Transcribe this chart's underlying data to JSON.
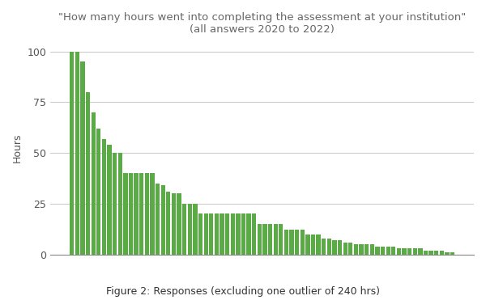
{
  "values": [
    100,
    100,
    95,
    80,
    70,
    62,
    57,
    54,
    50,
    50,
    40,
    40,
    40,
    40,
    40,
    40,
    35,
    34,
    31,
    30,
    30,
    25,
    25,
    25,
    20,
    20,
    20,
    20,
    20,
    20,
    20,
    20,
    20,
    20,
    20,
    15,
    15,
    15,
    15,
    15,
    12,
    12,
    12,
    12,
    10,
    10,
    10,
    8,
    8,
    7,
    7,
    6,
    6,
    5,
    5,
    5,
    5,
    4,
    4,
    4,
    4,
    3,
    3,
    3,
    3,
    3,
    2,
    2,
    2,
    2,
    1,
    1
  ],
  "bar_color": "#5aaa46",
  "title_line1": "\"How many hours went into completing the assessment at your institution\"",
  "title_line2": "(all answers 2020 to 2022)",
  "ylabel": "Hours",
  "caption": "Figure 2: Responses (excluding one outlier of 240 hrs)",
  "ylim": [
    0,
    105
  ],
  "yticks": [
    0,
    25,
    50,
    75,
    100
  ],
  "background_color": "#ffffff",
  "grid_color": "#cccccc",
  "title_color": "#666666",
  "caption_color": "#333333",
  "title_fontsize": 9.5,
  "ylabel_fontsize": 9,
  "caption_fontsize": 9
}
